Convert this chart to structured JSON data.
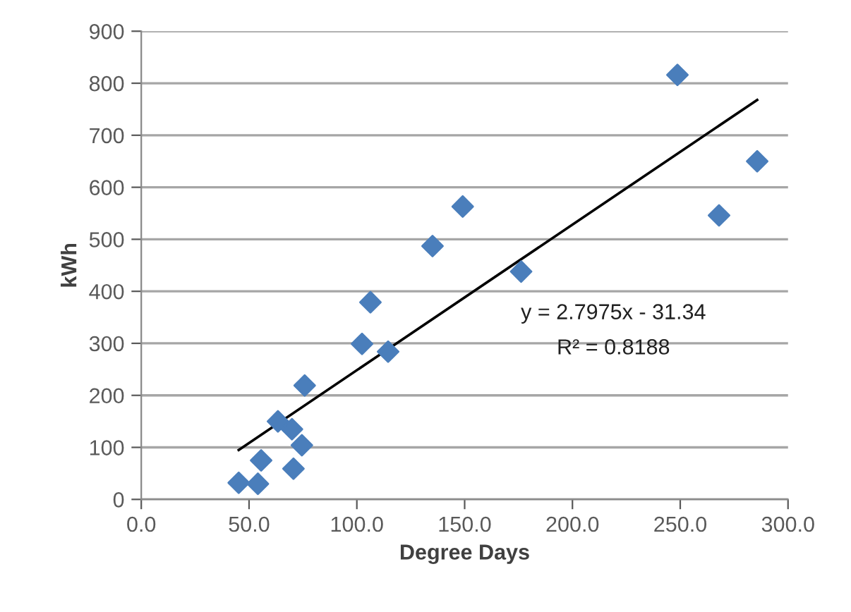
{
  "chart_data": {
    "type": "scatter",
    "xlabel": "Degree Days",
    "ylabel": "kWh",
    "xlim": [
      0,
      300
    ],
    "ylim": [
      0,
      900
    ],
    "xticks": [
      {
        "value": 0,
        "label": "0.0"
      },
      {
        "value": 50,
        "label": "50.0"
      },
      {
        "value": 100,
        "label": "100.0"
      },
      {
        "value": 150,
        "label": "150.0"
      },
      {
        "value": 200,
        "label": "200.0"
      },
      {
        "value": 250,
        "label": "250.0"
      },
      {
        "value": 300,
        "label": "300.0"
      }
    ],
    "yticks": [
      0,
      100,
      200,
      300,
      400,
      500,
      600,
      700,
      800,
      900
    ],
    "grid": "y",
    "legend": false,
    "marker": "diamond",
    "series": [
      {
        "color": "#4a7ebb",
        "x": [
          45.2,
          54.1,
          55.6,
          70.6,
          74.5,
          63.4,
          69.9,
          75.8,
          102.4,
          114.5,
          106.3,
          135.1,
          149.1,
          176.2,
          248.7,
          268.0,
          285.7
        ],
        "values": [
          32,
          30,
          75,
          59,
          104,
          150,
          135,
          219,
          299,
          284,
          379,
          487,
          563,
          438,
          816,
          546,
          650
        ]
      },
      {
        "type": "line",
        "color": "#000000",
        "marker": "none",
        "x": [
          45.2,
          285.7
        ],
        "values": [
          95,
          768
        ]
      }
    ],
    "annotations": [
      "y = 2.7975x - 31.34",
      "R² = 0.8188"
    ]
  }
}
